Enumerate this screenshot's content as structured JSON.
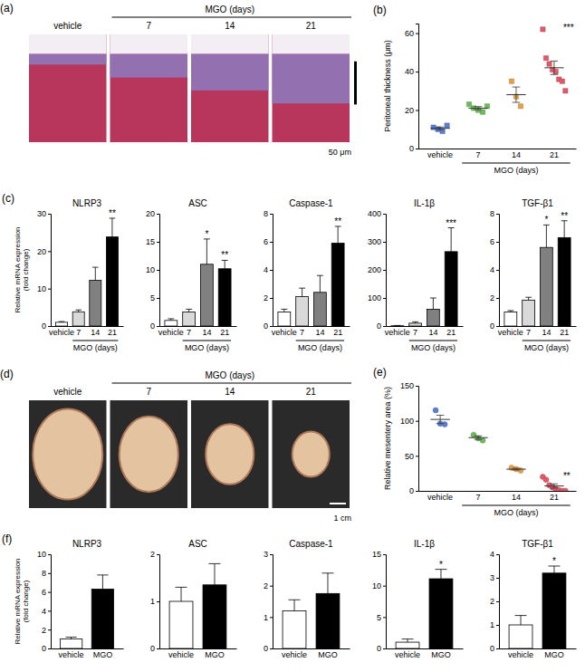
{
  "chart_data": [
    {
      "type": "scatter",
      "panel_label": "(b)",
      "y_label": "Peritoneal thickness (μm)",
      "group_label": "MGO (days)",
      "marker": "square",
      "categories": [
        "vehicle",
        "7",
        "14",
        "21"
      ],
      "values": [
        [
          11,
          10,
          9,
          12
        ],
        [
          23,
          21,
          20,
          19,
          22
        ],
        [
          35,
          27,
          22
        ],
        [
          62,
          47,
          44,
          41,
          40,
          36,
          35,
          30
        ]
      ],
      "means": [
        10.5,
        21,
        28,
        42
      ],
      "errors": [
        0.7,
        0.8,
        4,
        3.5
      ],
      "annotations": [
        null,
        null,
        null,
        "***"
      ],
      "colors": [
        "#5b7fcf",
        "#6dbb5a",
        "#e3a04a",
        "#e05a6a"
      ],
      "ylim": [
        0,
        65
      ],
      "yticks": [
        0,
        20,
        40,
        60
      ]
    },
    {
      "type": "bar",
      "panel_label": "(c)",
      "title": "NLRP3",
      "y_label": "Relative mRNA expression\n(fold change)",
      "group_label": "MGO (days)",
      "categories": [
        "vehicle",
        "7",
        "14",
        "21"
      ],
      "values": [
        1,
        3.8,
        12.2,
        23.8
      ],
      "errors": [
        0.2,
        0.5,
        3.5,
        5
      ],
      "annotations": [
        null,
        null,
        null,
        "**"
      ],
      "colors": [
        "#ffffff",
        "#d9d9d9",
        "#808080",
        "#000000"
      ],
      "ylim": [
        0,
        30
      ],
      "yticks": [
        0,
        10,
        20,
        30
      ]
    },
    {
      "type": "bar",
      "title": "ASC",
      "group_label": "MGO (days)",
      "categories": [
        "vehicle",
        "7",
        "14",
        "21"
      ],
      "values": [
        1,
        2.5,
        11,
        10.2
      ],
      "errors": [
        0.3,
        0.5,
        4.5,
        1.5
      ],
      "annotations": [
        null,
        null,
        "*",
        "**"
      ],
      "colors": [
        "#ffffff",
        "#d9d9d9",
        "#808080",
        "#000000"
      ],
      "ylim": [
        0,
        20
      ],
      "yticks": [
        0,
        5,
        10,
        15,
        20
      ]
    },
    {
      "type": "bar",
      "title": "Caspase-1",
      "group_label": "MGO (days)",
      "categories": [
        "vehicle",
        "7",
        "14",
        "21"
      ],
      "values": [
        1,
        2.1,
        2.4,
        5.9
      ],
      "errors": [
        0.2,
        0.6,
        1.2,
        1.2
      ],
      "annotations": [
        null,
        null,
        null,
        "**"
      ],
      "colors": [
        "#ffffff",
        "#d9d9d9",
        "#808080",
        "#000000"
      ],
      "ylim": [
        0,
        8
      ],
      "yticks": [
        0,
        2,
        4,
        6,
        8
      ]
    },
    {
      "type": "bar",
      "title": "IL-1β",
      "group_label": "MGO (days)",
      "categories": [
        "vehicle",
        "7",
        "14",
        "21"
      ],
      "values": [
        1,
        10,
        60,
        265
      ],
      "errors": [
        1,
        5,
        40,
        85
      ],
      "annotations": [
        null,
        null,
        null,
        "***"
      ],
      "colors": [
        "#ffffff",
        "#d9d9d9",
        "#808080",
        "#000000"
      ],
      "ylim": [
        0,
        400
      ],
      "yticks": [
        0,
        100,
        200,
        300,
        400
      ]
    },
    {
      "type": "bar",
      "title": "TGF-β1",
      "group_label": "MGO (days)",
      "categories": [
        "vehicle",
        "7",
        "14",
        "21"
      ],
      "values": [
        1,
        1.85,
        5.6,
        6.3
      ],
      "errors": [
        0.1,
        0.2,
        1.6,
        1.2
      ],
      "annotations": [
        null,
        null,
        "*",
        "**"
      ],
      "colors": [
        "#ffffff",
        "#d9d9d9",
        "#808080",
        "#000000"
      ],
      "ylim": [
        0,
        8
      ],
      "yticks": [
        0,
        2,
        4,
        6,
        8
      ]
    },
    {
      "type": "scatter",
      "panel_label": "(e)",
      "y_label": "Relative mesentery area (%)",
      "group_label": "MGO (days)",
      "marker": "circle",
      "categories": [
        "vehicle",
        "7",
        "14",
        "21"
      ],
      "values": [
        [
          115,
          96,
          95
        ],
        [
          80,
          75,
          72
        ],
        [
          33,
          31,
          29
        ],
        [
          20,
          16,
          8,
          5,
          3,
          1,
          0,
          0
        ]
      ],
      "means": [
        102,
        76,
        31,
        7
      ],
      "errors": [
        6,
        2.5,
        1.2,
        3
      ],
      "annotations": [
        null,
        null,
        null,
        "**"
      ],
      "colors": [
        "#5b7fcf",
        "#6dbb5a",
        "#e3a04a",
        "#e05a6a"
      ],
      "ylim": [
        0,
        150
      ],
      "yticks": [
        0,
        50,
        100,
        150
      ]
    },
    {
      "type": "bar",
      "panel_label": "(f)",
      "title": "NLRP3",
      "y_label": "Relative mRNA expression\n(fold change)",
      "categories": [
        "vehicle",
        "MGO"
      ],
      "values": [
        1,
        6.3
      ],
      "errors": [
        0.2,
        1.5
      ],
      "annotations": [
        null,
        null
      ],
      "colors": [
        "#ffffff",
        "#000000"
      ],
      "ylim": [
        0,
        10
      ],
      "yticks": [
        0,
        2,
        4,
        6,
        8,
        10
      ]
    },
    {
      "type": "bar",
      "title": "ASC",
      "categories": [
        "vehicle",
        "MGO"
      ],
      "values": [
        1,
        1.35
      ],
      "errors": [
        0.3,
        0.45
      ],
      "annotations": [
        null,
        null
      ],
      "colors": [
        "#ffffff",
        "#000000"
      ],
      "ylim": [
        0,
        2
      ],
      "yticks": [
        0,
        1,
        2
      ]
    },
    {
      "type": "bar",
      "title": "Caspase-1",
      "categories": [
        "vehicle",
        "MGO"
      ],
      "values": [
        1.2,
        1.75
      ],
      "errors": [
        0.35,
        0.65
      ],
      "annotations": [
        null,
        null
      ],
      "colors": [
        "#ffffff",
        "#000000"
      ],
      "ylim": [
        0,
        3
      ],
      "yticks": [
        0,
        1,
        2,
        3
      ]
    },
    {
      "type": "bar",
      "title": "IL-1β",
      "categories": [
        "vehicle",
        "MGO"
      ],
      "values": [
        1,
        11.1
      ],
      "errors": [
        0.5,
        1.5
      ],
      "annotations": [
        null,
        "*"
      ],
      "colors": [
        "#ffffff",
        "#000000"
      ],
      "ylim": [
        0,
        15
      ],
      "yticks": [
        0,
        5,
        10,
        15
      ]
    },
    {
      "type": "bar",
      "title": "TGF-β1",
      "categories": [
        "vehicle",
        "MGO"
      ],
      "values": [
        1,
        3.2
      ],
      "errors": [
        0.4,
        0.3
      ],
      "annotations": [
        null,
        "*"
      ],
      "colors": [
        "#ffffff",
        "#000000"
      ],
      "ylim": [
        0,
        4
      ],
      "yticks": [
        0,
        1,
        2,
        3,
        4
      ]
    }
  ],
  "image_panels": [
    {
      "panel_label": "(a)",
      "header": "MGO (days)",
      "columns": [
        "vehicle",
        "7",
        "14",
        "21"
      ],
      "scale_bar": "50 μm"
    },
    {
      "panel_label": "(d)",
      "header": "MGO (days)",
      "columns": [
        "vehicle",
        "7",
        "14",
        "21"
      ],
      "scale_bar": "1 cm"
    }
  ]
}
